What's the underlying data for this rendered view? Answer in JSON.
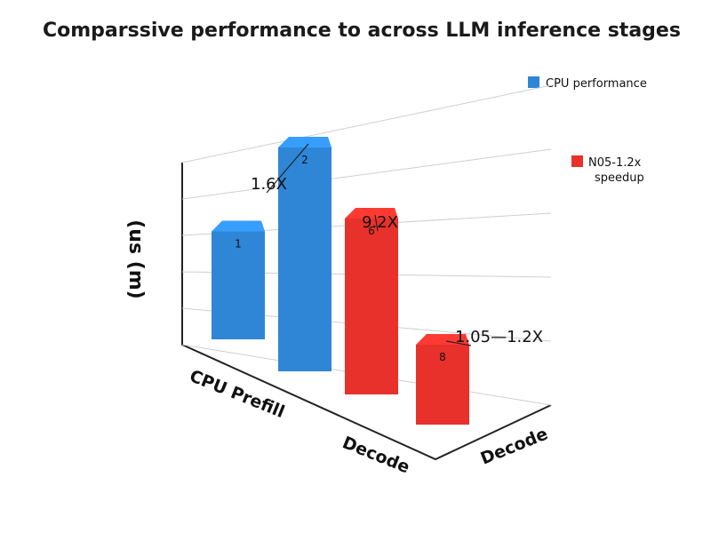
{
  "chart_data": {
    "type": "bar",
    "title": "Comparssive performance to across LLM inference stages",
    "ylabel": "(us (m)",
    "axis_labels": [
      "CPU Prefill",
      "Decode",
      "Decode"
    ],
    "legend": [
      {
        "label": "CPU performance",
        "color": "#2f86d6"
      },
      {
        "label": "N05-1.2x speedup",
        "color": "#e8312b"
      }
    ],
    "bars": [
      {
        "label": "1",
        "value": 1.35,
        "color": "#2f86d6",
        "annotation": ""
      },
      {
        "label": "2",
        "value": 2.8,
        "color": "#2f86d6",
        "annotation": "1.6X"
      },
      {
        "label": "6",
        "value": 2.2,
        "color": "#e8312b",
        "annotation": "9.2X"
      },
      {
        "label": "8",
        "value": 1.0,
        "color": "#e8312b",
        "annotation": "1.05—1.2X"
      }
    ],
    "ylim": [
      0,
      3.5
    ],
    "grid": true,
    "legend_position": "right"
  }
}
